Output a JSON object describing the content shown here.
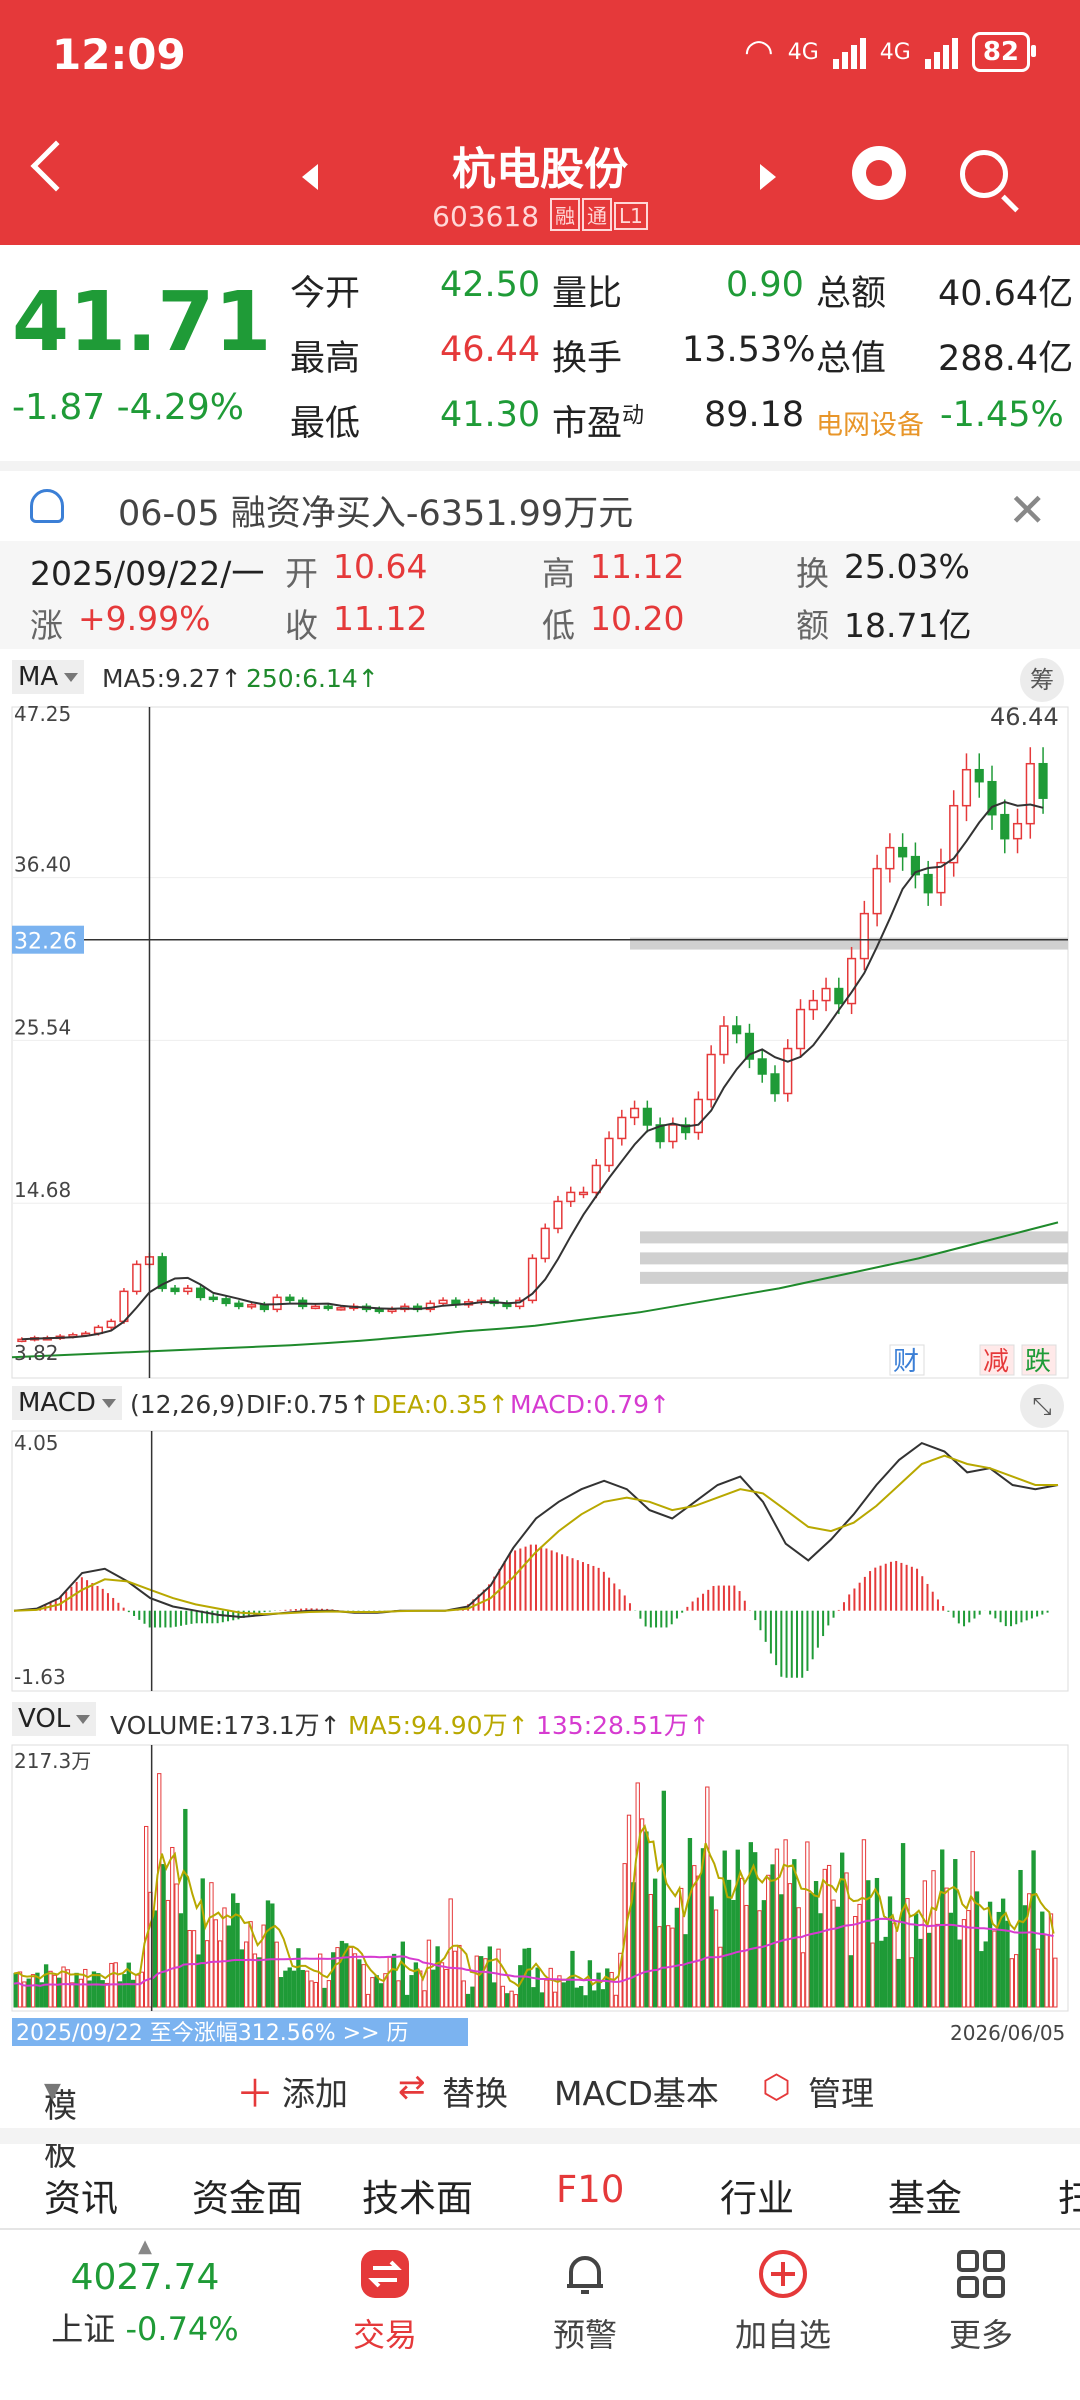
{
  "status": {
    "time": "12:09",
    "net1": "4G",
    "net2": "4G",
    "battery": "82"
  },
  "header": {
    "title": "杭电股份",
    "code": "603618",
    "tag1": "融",
    "tag2": "通",
    "tag3": "L1"
  },
  "quote": {
    "price": "41.71",
    "change": "-1.87 -4.29%",
    "open_label": "今开",
    "open": "42.50",
    "vr_label": "量比",
    "vr": "0.90",
    "amt_label": "总额",
    "amt": "40.64亿",
    "high_label": "最高",
    "high": "46.44",
    "turn_label": "换手",
    "turn": "13.53%",
    "mcap_label": "总值",
    "mcap": "288.4亿",
    "low_label": "最低",
    "low": "41.30",
    "pe_label": "市盈",
    "pe_sup": "动",
    "pe": "89.18",
    "sector": "电网设备",
    "sector_chg": "-1.45%"
  },
  "notice": {
    "text": "06-05 融资净买入-6351.99万元",
    "close": "✕"
  },
  "kline_info": {
    "date": "2025/09/22/一",
    "open_label": "开",
    "open": "10.64",
    "high_label": "高",
    "high": "11.12",
    "turn_label": "换",
    "turn": "25.03%",
    "chg_label": "涨",
    "chg": "+9.99%",
    "close_label": "收",
    "close": "11.12",
    "low_label": "低",
    "low": "10.20",
    "amt_label": "额",
    "amt": "18.71亿"
  },
  "ma_bar": {
    "btn": "MA",
    "ma5": "MA5:9.27↑",
    "ma250": "250:6.14↑",
    "chip": "筹"
  },
  "macd_bar": {
    "btn": "MACD",
    "params": "(12,26,9)",
    "dif": "DIF:0.75↑",
    "dea": "DEA:0.35↑",
    "macd": "MACD:0.79↑"
  },
  "vol_bar": {
    "btn": "VOL",
    "volume": "VOLUME:173.1万↑",
    "ma5": "MA5:94.90万↑",
    "ma135": "135:28.51万↑"
  },
  "colors": {
    "up": "#e5393a",
    "down": "#1f9b37",
    "ma": "#1f8a2c",
    "dea": "#b8a800",
    "macd": "#d63bd0",
    "crosshair": "#333"
  },
  "chart_data": [
    {
      "type": "candlestick",
      "title": "K线",
      "yticks": [
        "47.25",
        "36.40",
        "25.54",
        "14.68",
        "3.82"
      ],
      "ylim": [
        3.82,
        47.25
      ],
      "crosshair_value": "32.26",
      "max_label": "46.44",
      "markers": [
        "财",
        "减",
        "跌"
      ],
      "close_series": [
        5.6,
        5.7,
        5.7,
        5.8,
        5.9,
        6.0,
        6.4,
        6.8,
        8.8,
        10.6,
        11.1,
        9.0,
        8.8,
        9.0,
        8.4,
        8.3,
        8.0,
        7.8,
        7.9,
        7.6,
        8.4,
        8.2,
        7.8,
        7.8,
        7.7,
        7.7,
        7.8,
        7.6,
        7.5,
        7.6,
        7.8,
        7.6,
        8.0,
        8.2,
        7.9,
        8.1,
        8.2,
        8.0,
        7.8,
        8.2,
        11.0,
        13.0,
        14.8,
        15.4,
        15.4,
        17.2,
        19.0,
        20.4,
        21.0,
        19.9,
        18.8,
        19.9,
        19.4,
        21.6,
        24.6,
        26.5,
        26.0,
        24.3,
        23.3,
        22.0,
        25.0,
        27.6,
        28.2,
        29.0,
        28.0,
        31.0,
        34.0,
        37.0,
        38.4,
        37.8,
        36.6,
        35.4,
        37.4,
        41.2,
        43.6,
        42.8,
        40.6,
        39.0,
        40.0,
        44.0,
        41.7
      ],
      "ma250_series": [
        4.4,
        4.5,
        4.6,
        4.7,
        4.8,
        4.9,
        5.0,
        5.1,
        5.2,
        5.35,
        5.5,
        5.7,
        5.9,
        6.14,
        6.3,
        6.5,
        6.8,
        7.1,
        7.4,
        7.8,
        8.2,
        8.6,
        9.0,
        9.5,
        10.0,
        10.5,
        11.0,
        11.6,
        12.2,
        12.8,
        13.4
      ]
    },
    {
      "type": "macd",
      "title": "MACD",
      "yticks": [
        "4.05",
        "-1.63"
      ],
      "ylim": [
        -1.63,
        4.05
      ],
      "dif_series": [
        0,
        0.05,
        0.3,
        0.9,
        1.0,
        0.7,
        0.3,
        0.1,
        0,
        -0.1,
        -0.15,
        -0.1,
        -0.05,
        0,
        0,
        -0.05,
        -0.05,
        0,
        0,
        0,
        0.1,
        0.6,
        1.5,
        2.2,
        2.6,
        2.9,
        3.1,
        2.9,
        2.4,
        2.2,
        2.6,
        3.0,
        3.2,
        2.6,
        1.6,
        1.2,
        1.7,
        2.3,
        3.0,
        3.6,
        4.0,
        3.8,
        3.3,
        3.4,
        3.0,
        2.9,
        3.0
      ],
      "dea_series": [
        0,
        0.02,
        0.15,
        0.5,
        0.75,
        0.7,
        0.5,
        0.3,
        0.15,
        0.05,
        -0.05,
        -0.08,
        -0.06,
        -0.03,
        -0.02,
        -0.03,
        -0.03,
        -0.01,
        0,
        0,
        0.05,
        0.3,
        0.8,
        1.4,
        1.9,
        2.3,
        2.6,
        2.7,
        2.6,
        2.4,
        2.5,
        2.7,
        2.9,
        2.8,
        2.4,
        2.0,
        1.9,
        2.1,
        2.5,
        3.0,
        3.5,
        3.7,
        3.5,
        3.4,
        3.2,
        3.0,
        3.0
      ]
    },
    {
      "type": "bar",
      "title": "VOL",
      "yticks": [
        "217.3万"
      ],
      "ylim": [
        0,
        217.3
      ],
      "start_label": "2025/09/22 至今涨幅312.56% >> 历",
      "end_label": "2026/06/05"
    }
  ],
  "toolbar": {
    "template": "模板",
    "add": "添加",
    "replace": "替换",
    "macd_basic": "MACD基本",
    "manage": "管理"
  },
  "ftabs": {
    "t1": "资讯",
    "t2": "资金面",
    "t3": "技术面",
    "t4": "F10",
    "t5": "行业",
    "t6": "基金",
    "t7": "扫"
  },
  "nav": {
    "index_value": "4027.74",
    "index_name": "上证",
    "index_chg": "-0.74%",
    "trade": "交易",
    "alert": "预警",
    "add_fav": "加自选",
    "more": "更多"
  }
}
